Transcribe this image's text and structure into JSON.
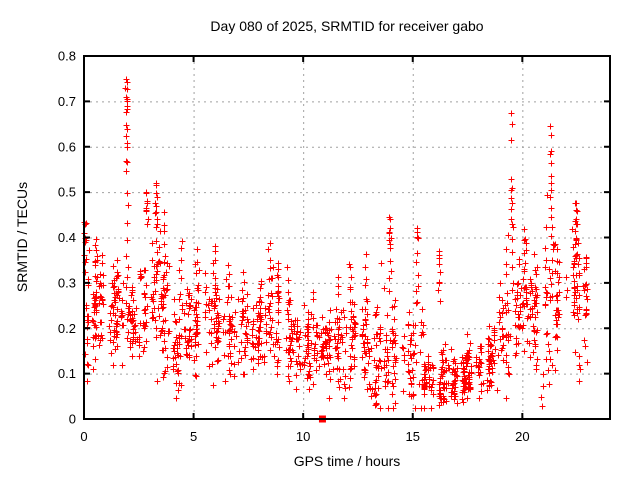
{
  "chart_data": {
    "type": "scatter",
    "title": "Day 080 of 2025, SRMTID for receiver gabo",
    "xlabel": "GPS time / hours",
    "ylabel": "SRMTID / TECUs",
    "xlim": [
      0,
      24
    ],
    "ylim": [
      0,
      0.8
    ],
    "xticks": [
      0,
      5,
      10,
      15,
      20
    ],
    "xtick_labels": [
      "0",
      "5",
      "10",
      "15",
      "20"
    ],
    "yticks": [
      0,
      0.1,
      0.2,
      0.3,
      0.4,
      0.5,
      0.6,
      0.7,
      0.8
    ],
    "ytick_labels": [
      "0",
      "0.1",
      "0.2",
      "0.3",
      "0.4",
      "0.5",
      "0.6",
      "0.7",
      "0.8"
    ],
    "grid": true,
    "grid_color": "#a0a0a0",
    "frame_color": "#000000",
    "background_color": "#ffffff",
    "text_color": "#000000",
    "marker": "plus",
    "marker_color": "#ff0000",
    "marker_size": 7,
    "seed": 20250080,
    "square_marker_point": {
      "x": 10.88,
      "y": 0,
      "shape": "filled-square",
      "color": "#ff0000"
    },
    "band_bins": [
      [
        0.0,
        0.5,
        30,
        0.25,
        0.07
      ],
      [
        0.5,
        1.0,
        34,
        0.26,
        0.06
      ],
      [
        1.0,
        1.5,
        30,
        0.22,
        0.05
      ],
      [
        1.5,
        2.0,
        30,
        0.23,
        0.06
      ],
      [
        2.0,
        2.5,
        30,
        0.22,
        0.05
      ],
      [
        2.5,
        3.0,
        30,
        0.25,
        0.06
      ],
      [
        3.0,
        3.5,
        34,
        0.27,
        0.08
      ],
      [
        3.5,
        4.0,
        34,
        0.22,
        0.07
      ],
      [
        4.0,
        4.5,
        30,
        0.18,
        0.06
      ],
      [
        4.5,
        5.0,
        30,
        0.2,
        0.05
      ],
      [
        5.0,
        5.5,
        30,
        0.21,
        0.06
      ],
      [
        5.5,
        6.0,
        30,
        0.22,
        0.06
      ],
      [
        6.0,
        6.5,
        30,
        0.19,
        0.05
      ],
      [
        6.5,
        7.0,
        30,
        0.18,
        0.05
      ],
      [
        7.0,
        7.5,
        30,
        0.2,
        0.05
      ],
      [
        7.5,
        8.0,
        28,
        0.17,
        0.04
      ],
      [
        8.0,
        8.5,
        30,
        0.2,
        0.06
      ],
      [
        8.5,
        9.0,
        30,
        0.21,
        0.06
      ],
      [
        9.0,
        9.5,
        28,
        0.18,
        0.05
      ],
      [
        9.5,
        10.0,
        28,
        0.16,
        0.04
      ],
      [
        10.0,
        10.5,
        30,
        0.16,
        0.04
      ],
      [
        10.5,
        11.0,
        32,
        0.17,
        0.04
      ],
      [
        11.0,
        11.5,
        30,
        0.16,
        0.05
      ],
      [
        11.5,
        12.0,
        30,
        0.17,
        0.05
      ],
      [
        12.0,
        12.5,
        30,
        0.18,
        0.06
      ],
      [
        12.5,
        13.0,
        30,
        0.17,
        0.06
      ],
      [
        13.0,
        13.5,
        28,
        0.14,
        0.06
      ],
      [
        13.5,
        14.0,
        28,
        0.17,
        0.07
      ],
      [
        14.0,
        14.5,
        26,
        0.16,
        0.06
      ],
      [
        14.5,
        15.0,
        26,
        0.14,
        0.05
      ],
      [
        15.0,
        15.5,
        26,
        0.14,
        0.07
      ],
      [
        15.5,
        16.0,
        36,
        0.1,
        0.035
      ],
      [
        16.0,
        16.5,
        36,
        0.09,
        0.035
      ],
      [
        16.5,
        17.0,
        36,
        0.085,
        0.03
      ],
      [
        17.0,
        17.5,
        36,
        0.095,
        0.035
      ],
      [
        17.5,
        18.0,
        30,
        0.1,
        0.03
      ],
      [
        18.0,
        18.5,
        28,
        0.12,
        0.04
      ],
      [
        18.5,
        19.0,
        28,
        0.14,
        0.04
      ],
      [
        19.0,
        19.5,
        26,
        0.17,
        0.05
      ],
      [
        19.5,
        20.0,
        28,
        0.24,
        0.06
      ],
      [
        20.0,
        20.5,
        28,
        0.26,
        0.07
      ],
      [
        20.5,
        21.0,
        26,
        0.24,
        0.07
      ],
      [
        21.0,
        21.5,
        26,
        0.29,
        0.08
      ],
      [
        21.5,
        22.0,
        24,
        0.25,
        0.06
      ],
      [
        22.0,
        22.5,
        26,
        0.29,
        0.06
      ],
      [
        22.5,
        23.0,
        24,
        0.26,
        0.06
      ]
    ],
    "columns": [
      [
        0.05,
        0.32,
        0.44,
        6
      ],
      [
        0.15,
        0.09,
        0.13,
        3
      ],
      [
        0.55,
        0.28,
        0.4,
        7
      ],
      [
        0.85,
        0.25,
        0.37,
        6
      ],
      [
        1.35,
        0.24,
        0.33,
        5
      ],
      [
        1.93,
        0.55,
        0.75,
        9
      ],
      [
        1.97,
        0.33,
        0.5,
        6
      ],
      [
        2.85,
        0.42,
        0.5,
        6
      ],
      [
        3.3,
        0.33,
        0.52,
        10
      ],
      [
        3.65,
        0.3,
        0.45,
        8
      ],
      [
        4.25,
        0.04,
        0.12,
        5
      ],
      [
        4.4,
        0.28,
        0.4,
        6
      ],
      [
        5.2,
        0.26,
        0.34,
        5
      ],
      [
        5.95,
        0.28,
        0.39,
        7
      ],
      [
        6.55,
        0.25,
        0.33,
        5
      ],
      [
        7.25,
        0.24,
        0.32,
        5
      ],
      [
        8.45,
        0.24,
        0.39,
        8
      ],
      [
        8.85,
        0.24,
        0.34,
        6
      ],
      [
        9.3,
        0.25,
        0.33,
        4
      ],
      [
        10.3,
        0.07,
        0.12,
        4
      ],
      [
        10.4,
        0.22,
        0.28,
        4
      ],
      [
        11.55,
        0.22,
        0.32,
        5
      ],
      [
        11.9,
        0.05,
        0.1,
        4
      ],
      [
        12.15,
        0.24,
        0.35,
        6
      ],
      [
        12.85,
        0.25,
        0.36,
        6
      ],
      [
        13.3,
        0.03,
        0.08,
        5
      ],
      [
        13.95,
        0.28,
        0.44,
        8
      ],
      [
        15.2,
        0.26,
        0.42,
        7
      ],
      [
        16.2,
        0.27,
        0.37,
        5
      ],
      [
        18.95,
        0.15,
        0.3,
        6
      ],
      [
        19.3,
        0.25,
        0.4,
        6
      ],
      [
        19.55,
        0.28,
        0.42,
        6
      ],
      [
        20.1,
        0.3,
        0.42,
        6
      ],
      [
        20.45,
        0.2,
        0.3,
        5
      ],
      [
        20.9,
        0.03,
        0.09,
        4
      ],
      [
        21.2,
        0.08,
        0.17,
        4
      ],
      [
        21.35,
        0.3,
        0.42,
        6
      ],
      [
        22.45,
        0.35,
        0.475,
        8
      ],
      [
        22.55,
        0.22,
        0.38,
        10
      ],
      [
        22.6,
        0.08,
        0.14,
        4
      ]
    ],
    "outlier_points": [
      [
        0.02,
        0.435
      ],
      [
        0.05,
        0.43
      ],
      [
        0.03,
        0.4
      ],
      [
        0.08,
        0.395
      ],
      [
        1.93,
        0.75
      ],
      [
        1.95,
        0.727
      ],
      [
        1.93,
        0.71
      ],
      [
        1.96,
        0.705
      ],
      [
        1.94,
        0.7
      ],
      [
        1.95,
        0.683
      ],
      [
        1.93,
        0.648
      ],
      [
        1.96,
        0.608
      ],
      [
        1.94,
        0.566
      ],
      [
        2.84,
        0.5
      ],
      [
        2.87,
        0.48
      ],
      [
        2.82,
        0.465
      ],
      [
        3.28,
        0.515
      ],
      [
        3.32,
        0.49
      ],
      [
        3.3,
        0.47
      ],
      [
        3.26,
        0.455
      ],
      [
        3.34,
        0.44
      ],
      [
        13.95,
        0.44
      ],
      [
        13.98,
        0.42
      ],
      [
        13.92,
        0.41
      ],
      [
        14.0,
        0.4
      ],
      [
        13.96,
        0.385
      ],
      [
        15.18,
        0.42
      ],
      [
        15.22,
        0.4
      ],
      [
        16.18,
        0.37
      ],
      [
        16.22,
        0.355
      ],
      [
        16.2,
        0.3
      ],
      [
        16.17,
        0.285
      ],
      [
        19.5,
        0.674
      ],
      [
        19.52,
        0.65
      ],
      [
        19.48,
        0.615
      ],
      [
        19.5,
        0.53
      ],
      [
        19.53,
        0.51
      ],
      [
        19.47,
        0.505
      ],
      [
        19.5,
        0.488
      ],
      [
        19.52,
        0.475
      ],
      [
        19.49,
        0.462
      ],
      [
        19.5,
        0.44
      ],
      [
        19.51,
        0.43
      ],
      [
        21.28,
        0.645
      ],
      [
        21.32,
        0.625
      ],
      [
        21.3,
        0.59
      ],
      [
        21.27,
        0.585
      ],
      [
        21.33,
        0.565
      ],
      [
        21.29,
        0.535
      ],
      [
        21.31,
        0.52
      ],
      [
        21.3,
        0.505
      ],
      [
        21.28,
        0.49
      ],
      [
        21.32,
        0.465
      ],
      [
        21.3,
        0.445
      ],
      [
        22.42,
        0.475
      ],
      [
        22.47,
        0.46
      ],
      [
        22.44,
        0.44
      ],
      [
        22.5,
        0.43
      ],
      [
        22.4,
        0.415
      ],
      [
        22.46,
        0.4
      ]
    ]
  }
}
